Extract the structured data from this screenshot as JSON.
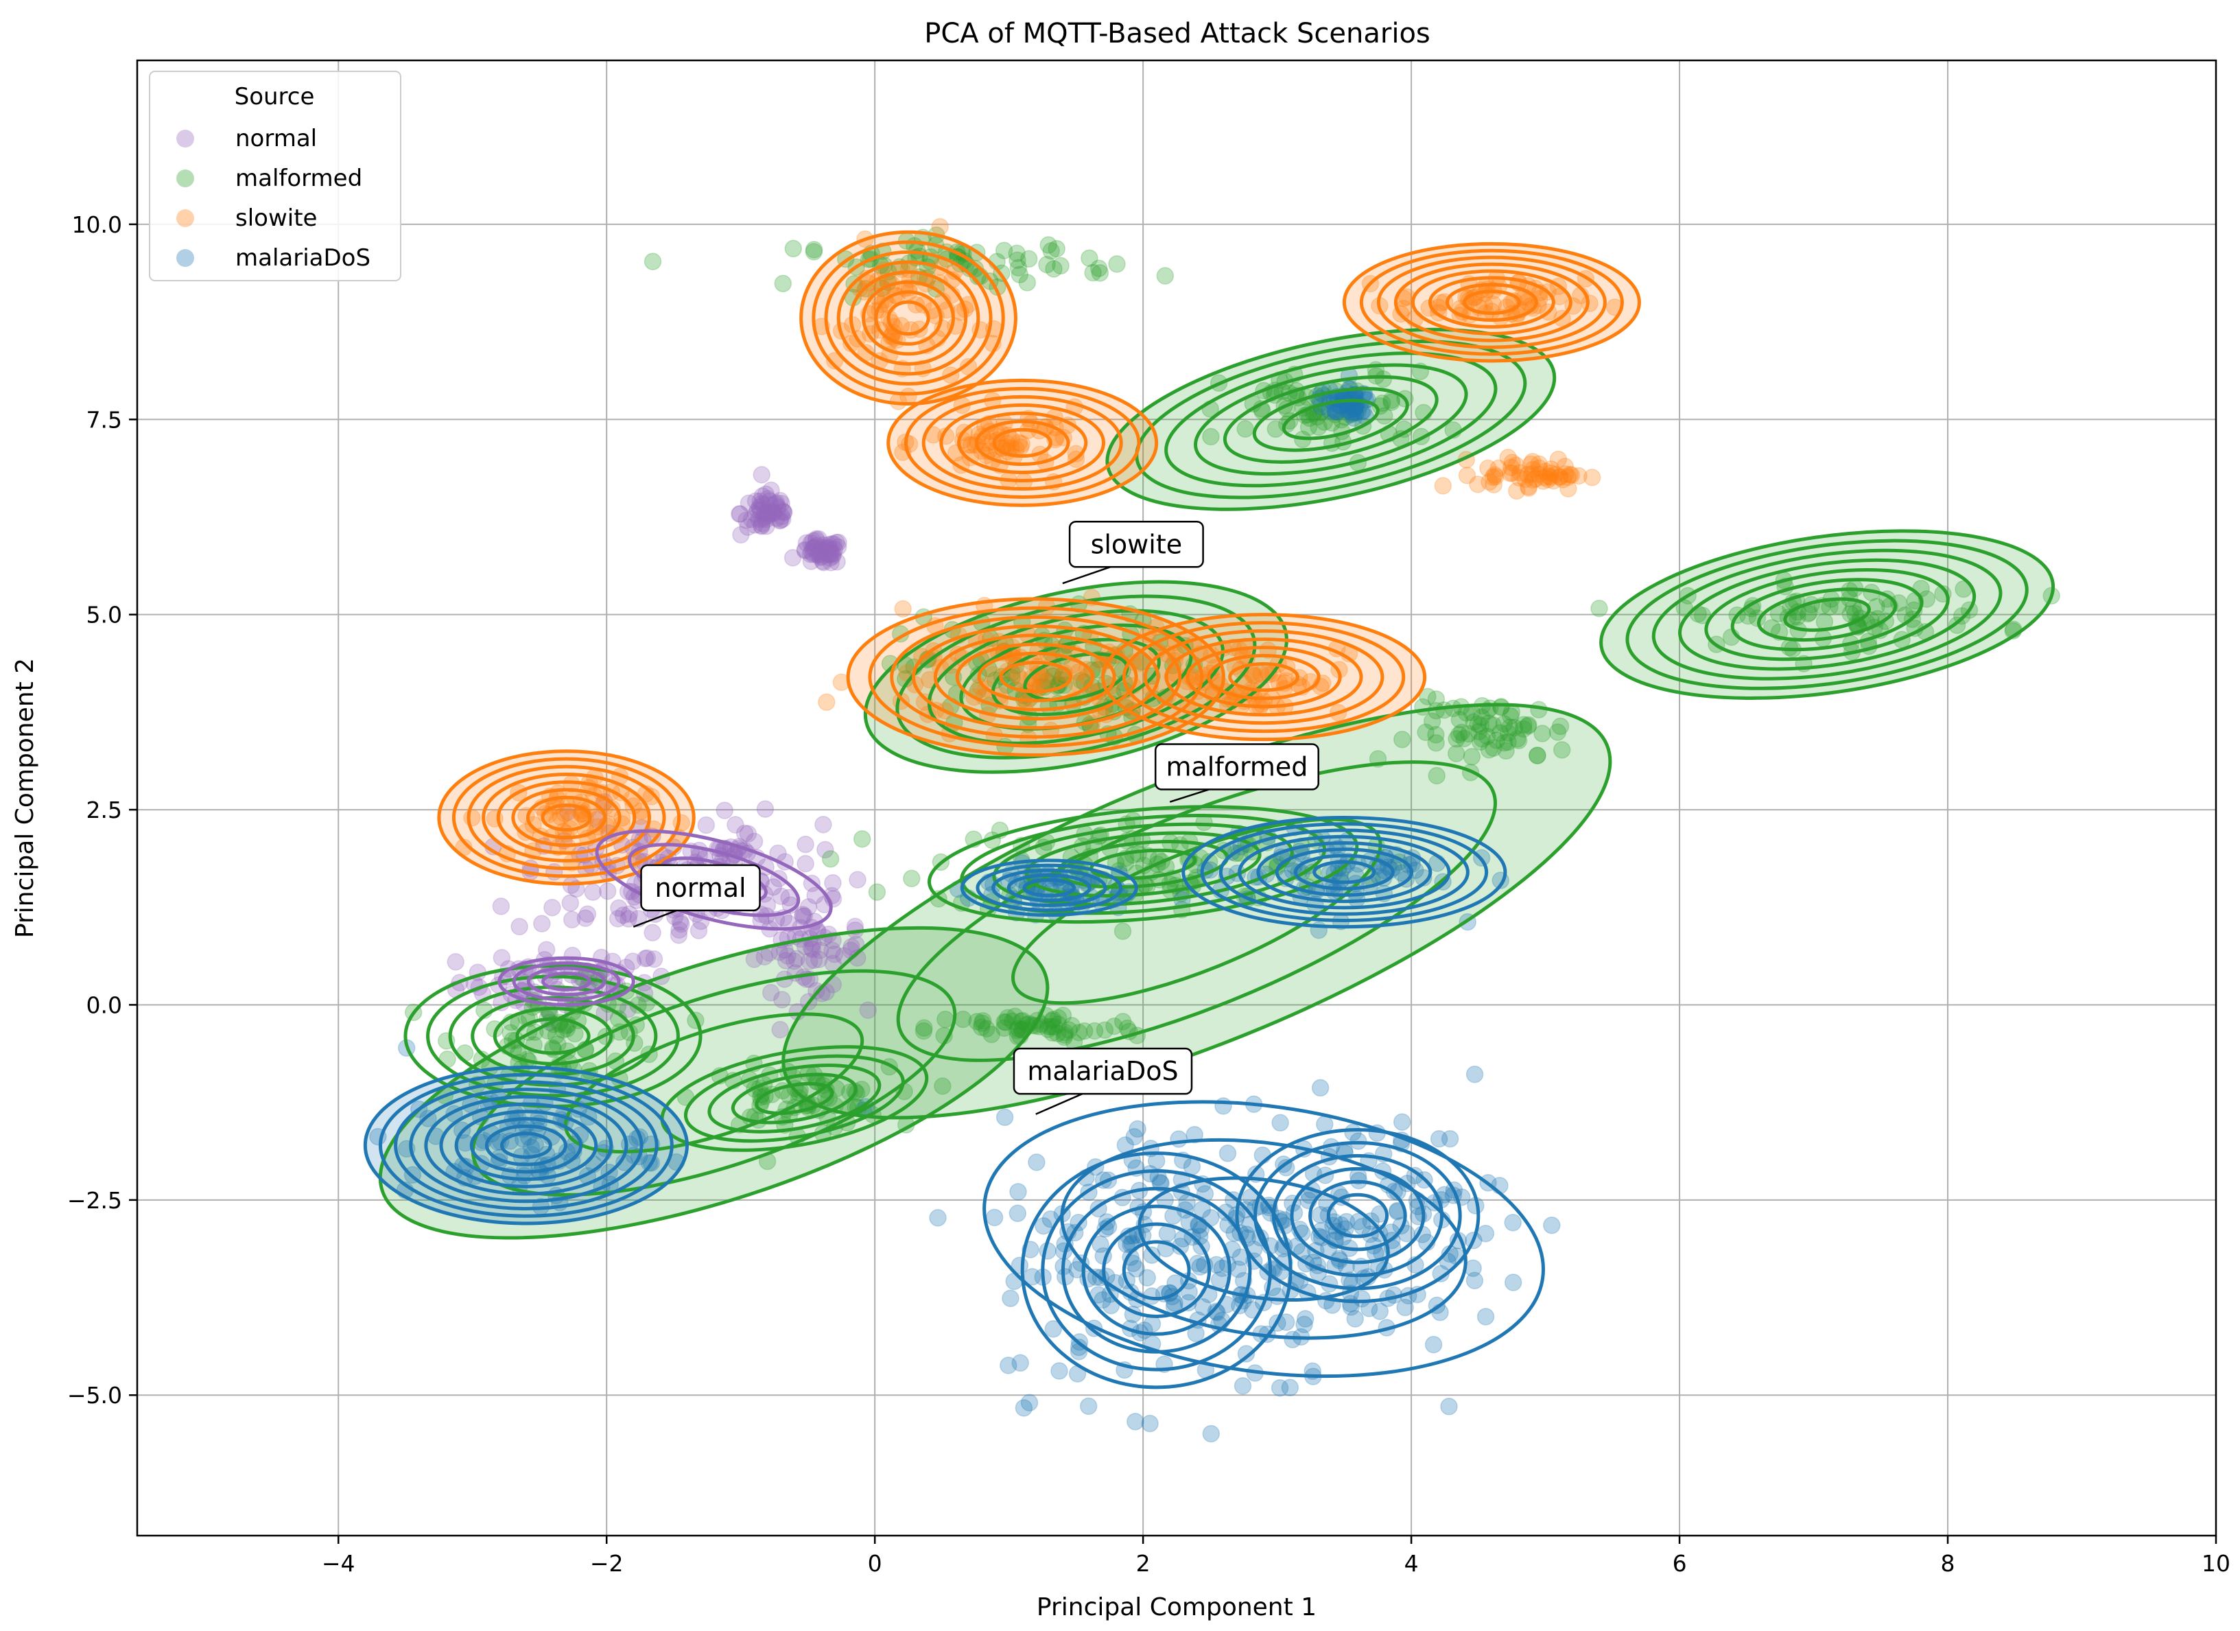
{
  "chart_data": {
    "type": "scatter",
    "title": "PCA of MQTT-Based Attack Scenarios",
    "xlabel": "Principal Component 1",
    "ylabel": "Principal Component 2",
    "xlim": [
      -5.5,
      10
    ],
    "ylim": [
      -6.8,
      12.1
    ],
    "xticks": [
      -4,
      -2,
      0,
      2,
      4,
      6,
      8,
      10
    ],
    "yticks": [
      -5.0,
      -2.5,
      0.0,
      2.5,
      5.0,
      7.5,
      10.0
    ],
    "xtick_labels": [
      "−4",
      "−2",
      "0",
      "2",
      "4",
      "6",
      "8",
      "10"
    ],
    "ytick_labels": [
      "−5.0",
      "−2.5",
      "0.0",
      "2.5",
      "5.0",
      "7.5",
      "10.0"
    ],
    "grid": true,
    "legend": {
      "title": "Source",
      "location": "top-left",
      "entries": [
        {
          "name": "normal",
          "color": "#9467bd"
        },
        {
          "name": "malformed",
          "color": "#2ca02c"
        },
        {
          "name": "slowite",
          "color": "#ff7f0e"
        },
        {
          "name": "malariaDoS",
          "color": "#1f77b4"
        }
      ]
    },
    "series": [
      {
        "name": "normal",
        "color": "#9467bd",
        "clusters": [
          {
            "cx": -2.3,
            "cy": 0.3,
            "sx": 0.4,
            "sy": 0.2
          },
          {
            "cx": -1.7,
            "cy": 1.6,
            "sx": 0.5,
            "sy": 0.4
          },
          {
            "cx": -1.1,
            "cy": 1.7,
            "sx": 0.35,
            "sy": 0.35
          },
          {
            "cx": -0.5,
            "cy": 0.7,
            "sx": 0.2,
            "sy": 0.3
          },
          {
            "cx": -0.8,
            "cy": 6.3,
            "sx": 0.1,
            "sy": 0.15
          },
          {
            "cx": -0.4,
            "cy": 5.8,
            "sx": 0.08,
            "sy": 0.08
          }
        ]
      },
      {
        "name": "malformed",
        "color": "#2ca02c",
        "clusters": [
          {
            "cx": -2.3,
            "cy": -0.4,
            "sx": 0.4,
            "sy": 0.3
          },
          {
            "cx": -0.6,
            "cy": -1.2,
            "sx": 0.35,
            "sy": 0.2
          },
          {
            "cx": 1.2,
            "cy": -0.3,
            "sx": 0.4,
            "sy": 0.1
          },
          {
            "cx": 2.0,
            "cy": 1.8,
            "sx": 0.8,
            "sy": 0.3
          },
          {
            "cx": 1.2,
            "cy": 4.2,
            "sx": 0.5,
            "sy": 0.4
          },
          {
            "cx": 3.4,
            "cy": 7.6,
            "sx": 0.4,
            "sy": 0.25
          },
          {
            "cx": 7.2,
            "cy": 5.0,
            "sx": 0.6,
            "sy": 0.2
          },
          {
            "cx": 4.6,
            "cy": 3.5,
            "sx": 0.3,
            "sy": 0.2
          },
          {
            "cx": 0.6,
            "cy": 9.5,
            "sx": 0.6,
            "sy": 0.15
          }
        ]
      },
      {
        "name": "slowite",
        "color": "#ff7f0e",
        "clusters": [
          {
            "cx": 0.2,
            "cy": 8.8,
            "sx": 0.25,
            "sy": 0.45
          },
          {
            "cx": 1.0,
            "cy": 7.2,
            "sx": 0.3,
            "sy": 0.2
          },
          {
            "cx": 1.1,
            "cy": 4.2,
            "sx": 0.6,
            "sy": 0.35
          },
          {
            "cx": 2.8,
            "cy": 4.2,
            "sx": 0.35,
            "sy": 0.25
          },
          {
            "cx": -2.3,
            "cy": 2.4,
            "sx": 0.3,
            "sy": 0.25
          },
          {
            "cx": 4.6,
            "cy": 9.0,
            "sx": 0.35,
            "sy": 0.15
          },
          {
            "cx": 4.9,
            "cy": 6.8,
            "sx": 0.2,
            "sy": 0.1
          }
        ]
      },
      {
        "name": "malariaDoS",
        "color": "#1f77b4",
        "clusters": [
          {
            "cx": 2.3,
            "cy": -3.2,
            "sx": 0.7,
            "sy": 0.9
          },
          {
            "cx": 3.6,
            "cy": -2.8,
            "sx": 0.55,
            "sy": 0.7
          },
          {
            "cx": -2.6,
            "cy": -1.8,
            "sx": 0.45,
            "sy": 0.35
          },
          {
            "cx": 3.4,
            "cy": 1.7,
            "sx": 0.45,
            "sy": 0.25
          },
          {
            "cx": 1.3,
            "cy": 1.5,
            "sx": 0.3,
            "sy": 0.15
          },
          {
            "cx": 3.5,
            "cy": 7.7,
            "sx": 0.1,
            "sy": 0.1
          }
        ]
      }
    ],
    "contours": [
      {
        "series": "malformed",
        "color": "#2ca02c",
        "filled": true,
        "cx": -1.2,
        "cy": -1.0,
        "rx": 2.6,
        "ry": 1.5,
        "angle": 18,
        "levels": 3
      },
      {
        "series": "malformed",
        "color": "#2ca02c",
        "filled": false,
        "cx": -2.4,
        "cy": -0.4,
        "rx": 1.1,
        "ry": 0.9,
        "angle": 0,
        "levels": 6
      },
      {
        "series": "malformed",
        "color": "#2ca02c",
        "filled": false,
        "cx": -0.6,
        "cy": -1.2,
        "rx": 1.0,
        "ry": 0.6,
        "angle": 10,
        "levels": 5
      },
      {
        "series": "malformed",
        "color": "#2ca02c",
        "filled": true,
        "cx": 2.4,
        "cy": 1.2,
        "rx": 3.3,
        "ry": 1.7,
        "angle": 22,
        "levels": 3
      },
      {
        "series": "malformed",
        "color": "#2ca02c",
        "filled": false,
        "cx": 2.0,
        "cy": 1.8,
        "rx": 1.6,
        "ry": 0.7,
        "angle": 5,
        "levels": 6
      },
      {
        "series": "malformed",
        "color": "#2ca02c",
        "filled": true,
        "cx": 1.5,
        "cy": 4.2,
        "rx": 1.6,
        "ry": 1.1,
        "angle": 12,
        "levels": 6
      },
      {
        "series": "malformed",
        "color": "#2ca02c",
        "filled": true,
        "cx": 3.4,
        "cy": 7.5,
        "rx": 1.7,
        "ry": 1.0,
        "angle": 12,
        "levels": 7
      },
      {
        "series": "malformed",
        "color": "#2ca02c",
        "filled": true,
        "cx": 7.1,
        "cy": 5.0,
        "rx": 1.7,
        "ry": 1.0,
        "angle": 8,
        "levels": 8
      },
      {
        "series": "slowite",
        "color": "#ff7f0e",
        "filled": true,
        "cx": 0.25,
        "cy": 8.8,
        "rx": 0.8,
        "ry": 1.1,
        "angle": 0,
        "levels": 8
      },
      {
        "series": "slowite",
        "color": "#ff7f0e",
        "filled": true,
        "cx": 1.1,
        "cy": 7.2,
        "rx": 1.0,
        "ry": 0.8,
        "angle": 0,
        "levels": 7
      },
      {
        "series": "slowite",
        "color": "#ff7f0e",
        "filled": true,
        "cx": 1.2,
        "cy": 4.2,
        "rx": 1.4,
        "ry": 1.0,
        "angle": 0,
        "levels": 8
      },
      {
        "series": "slowite",
        "color": "#ff7f0e",
        "filled": true,
        "cx": 2.9,
        "cy": 4.2,
        "rx": 1.2,
        "ry": 0.8,
        "angle": 0,
        "levels": 7
      },
      {
        "series": "slowite",
        "color": "#ff7f0e",
        "filled": true,
        "cx": -2.3,
        "cy": 2.4,
        "rx": 0.95,
        "ry": 0.85,
        "angle": 0,
        "levels": 8
      },
      {
        "series": "slowite",
        "color": "#ff7f0e",
        "filled": true,
        "cx": 4.6,
        "cy": 9.0,
        "rx": 1.1,
        "ry": 0.75,
        "angle": 0,
        "levels": 8
      },
      {
        "series": "normal",
        "color": "#9467bd",
        "filled": false,
        "cx": -2.3,
        "cy": 0.3,
        "rx": 0.5,
        "ry": 0.3,
        "angle": 0,
        "levels": 4
      },
      {
        "series": "normal",
        "color": "#9467bd",
        "filled": false,
        "cx": -1.2,
        "cy": 1.6,
        "rx": 0.9,
        "ry": 0.5,
        "angle": -15,
        "levels": 3
      },
      {
        "series": "malariaDoS",
        "color": "#1f77b4",
        "filled": false,
        "cx": 2.9,
        "cy": -3.0,
        "rx": 2.1,
        "ry": 1.7,
        "angle": -8,
        "levels": 3
      },
      {
        "series": "malariaDoS",
        "color": "#1f77b4",
        "filled": false,
        "cx": 2.1,
        "cy": -3.4,
        "rx": 1.0,
        "ry": 1.5,
        "angle": 0,
        "levels": 6
      },
      {
        "series": "malariaDoS",
        "color": "#1f77b4",
        "filled": false,
        "cx": 3.6,
        "cy": -2.7,
        "rx": 0.9,
        "ry": 1.1,
        "angle": 0,
        "levels": 6
      },
      {
        "series": "malariaDoS",
        "color": "#1f77b4",
        "filled": true,
        "cx": -2.6,
        "cy": -1.8,
        "rx": 1.2,
        "ry": 1.0,
        "angle": 0,
        "levels": 10
      },
      {
        "series": "malariaDoS",
        "color": "#1f77b4",
        "filled": false,
        "cx": 3.5,
        "cy": 1.7,
        "rx": 1.2,
        "ry": 0.7,
        "angle": 0,
        "levels": 8
      },
      {
        "series": "malariaDoS",
        "color": "#1f77b4",
        "filled": false,
        "cx": 1.3,
        "cy": 1.5,
        "rx": 0.65,
        "ry": 0.35,
        "angle": 0,
        "levels": 5
      }
    ],
    "annotations": [
      {
        "text": "normal",
        "x": -1.3,
        "y": 1.5,
        "tip_x": -1.8,
        "tip_y": 1.0
      },
      {
        "text": "slowite",
        "x": 1.95,
        "y": 5.9,
        "tip_x": 1.4,
        "tip_y": 5.4
      },
      {
        "text": "malformed",
        "x": 2.7,
        "y": 3.05,
        "tip_x": 2.2,
        "tip_y": 2.6
      },
      {
        "text": "malariaDoS",
        "x": 1.7,
        "y": -0.85,
        "tip_x": 1.2,
        "tip_y": -1.4
      }
    ]
  }
}
